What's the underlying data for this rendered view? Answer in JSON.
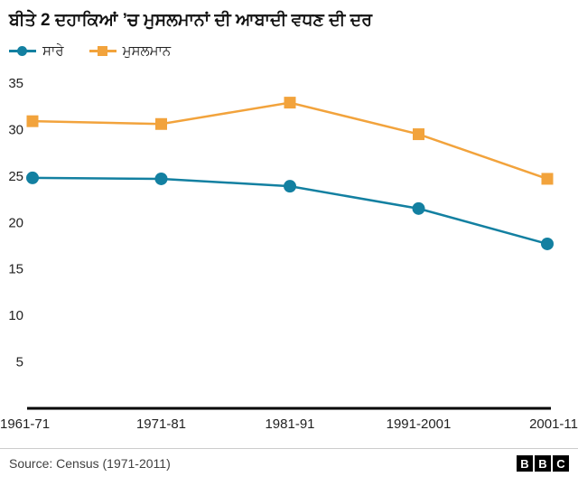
{
  "title": "ਬੀਤੇ 2 ਦਹਾਕਿਆਂ ’ਚ ਮੁਸਲਮਾਨਾਂ ਦੀ ਆਬਾਦੀ ਵਧਣ ਦੀ ਦਰ",
  "chart_data": {
    "type": "line",
    "categories": [
      "1961-71",
      "1971-81",
      "1981-91",
      "1991-2001",
      "2001-11"
    ],
    "series": [
      {
        "name": "ਸਾਰੇ",
        "color": "#1380A1",
        "marker": "circle",
        "values": [
          24.8,
          24.7,
          23.9,
          21.5,
          17.7
        ]
      },
      {
        "name": "ਮੁਸਲਮਾਨ",
        "color": "#F2A33C",
        "marker": "square",
        "values": [
          30.9,
          30.6,
          32.9,
          29.5,
          24.7
        ]
      }
    ],
    "ylim": [
      0,
      35
    ],
    "yticks": [
      5,
      10,
      15,
      20,
      25,
      30,
      35
    ],
    "grid": false,
    "legend_position": "top-left",
    "axis_color": "#000000"
  },
  "footer": {
    "source": "Source: Census (1971-2011)",
    "logo": [
      "B",
      "B",
      "C"
    ]
  }
}
